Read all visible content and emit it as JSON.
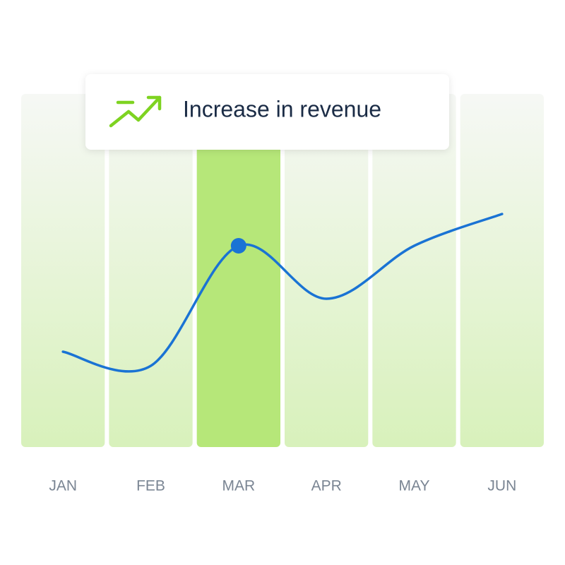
{
  "chart_data": {
    "type": "line",
    "annotation": "Increase in revenue",
    "categories": [
      "JAN",
      "FEB",
      "MAR",
      "APR",
      "MAY",
      "JUN"
    ],
    "values": [
      27,
      23,
      57,
      42,
      57,
      66
    ],
    "color": "#1a73d4",
    "highlight_index": 2,
    "ylim": [
      0,
      100
    ]
  }
}
